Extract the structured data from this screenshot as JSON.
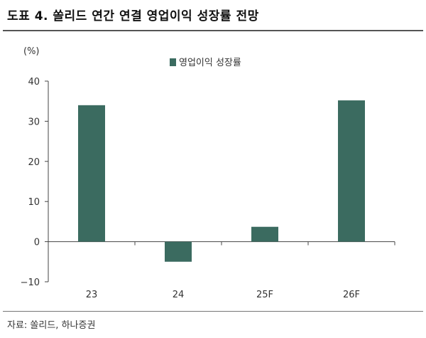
{
  "figure": {
    "title": "도표 4. 쏠리드 연간 연결 영업이익 성장률 전망",
    "source": "자료: 쏠리드, 하나증권"
  },
  "chart_data": {
    "type": "bar",
    "unit_label": "(%)",
    "categories": [
      "23",
      "24",
      "25F",
      "26F"
    ],
    "series": [
      {
        "name": "영업이익 성장률",
        "values": [
          34.0,
          -5.0,
          3.7,
          35.2
        ],
        "color": "#3b6b60"
      }
    ],
    "ylim": [
      -10,
      40
    ],
    "yticks": [
      -10,
      0,
      10,
      20,
      30,
      40
    ],
    "ytick_labels": [
      "−10",
      "0",
      "10",
      "20",
      "30",
      "40"
    ],
    "grid": false,
    "legend_position": "top-center"
  }
}
